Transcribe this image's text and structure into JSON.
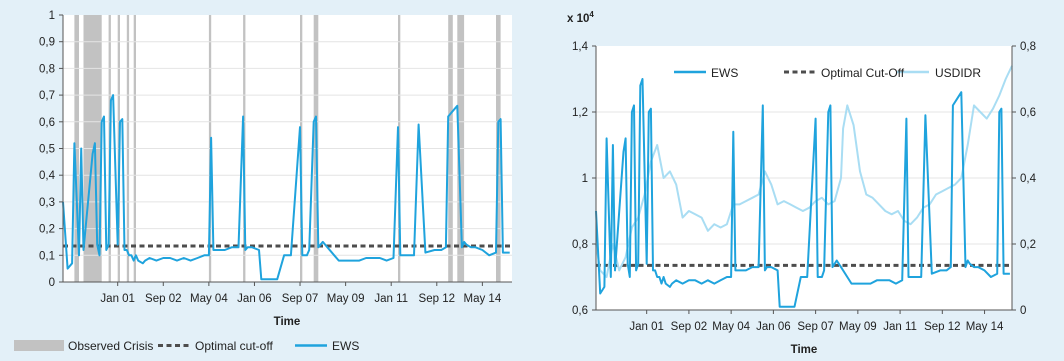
{
  "chart_data": [
    {
      "type": "line",
      "xlabel": "Time",
      "ylabel": "",
      "ylim": [
        0,
        1
      ],
      "yticks": [
        "0",
        "0,1",
        "0,2",
        "0,3",
        "0,4",
        "0,5",
        "0,6",
        "0,7",
        "0,8",
        "0,9",
        "1"
      ],
      "xlim": [
        "1999-01",
        "2015-06"
      ],
      "xtick_labels": [
        "Jan 01",
        "Sep 02",
        "May 04",
        "Jan 06",
        "Sep 07",
        "May 09",
        "Jan 11",
        "Sep 12",
        "May 14"
      ],
      "xtick_dates": [
        "2001-01",
        "2002-09",
        "2004-05",
        "2006-01",
        "2007-09",
        "2009-05",
        "2011-01",
        "2012-09",
        "2014-05"
      ],
      "legend_position": "bottom",
      "legend": [
        "Observed Crisis",
        "Optimal cut-off",
        "EWS"
      ],
      "crisis_periods": [
        [
          "1999-06",
          "1999-08"
        ],
        [
          "1999-10",
          "2000-06"
        ],
        [
          "2000-09",
          "2000-10"
        ],
        [
          "2001-01",
          "2001-02"
        ],
        [
          "2001-05",
          "2001-06"
        ],
        [
          "2001-08",
          "2001-09"
        ],
        [
          "2004-05",
          "2004-06"
        ],
        [
          "2005-08",
          "2005-09"
        ],
        [
          "2007-09",
          "2007-10"
        ],
        [
          "2008-03",
          "2008-05"
        ],
        [
          "2011-04",
          "2011-05"
        ],
        [
          "2013-02",
          "2013-04"
        ],
        [
          "2013-06",
          "2013-09"
        ],
        [
          "2014-11",
          "2015-01"
        ]
      ],
      "series": [
        {
          "name": "Optimal cut-off",
          "style": "dashed",
          "color": "#4d4d4d",
          "x": [
            "1999-01",
            "2015-06"
          ],
          "values": [
            0.135,
            0.135
          ]
        },
        {
          "name": "EWS",
          "style": "solid",
          "color": "#1fa3dd",
          "x": [
            "1999-01",
            "1999-03",
            "1999-05",
            "1999-06",
            "1999-08",
            "1999-09",
            "1999-10",
            "2000-02",
            "2000-03",
            "2000-04",
            "2000-05",
            "2000-06",
            "2000-07",
            "2000-08",
            "2000-09",
            "2000-10",
            "2000-11",
            "2001-01",
            "2001-02",
            "2001-03",
            "2001-04",
            "2001-05",
            "2001-06",
            "2001-07",
            "2001-08",
            "2001-09",
            "2001-10",
            "2001-12",
            "2002-01",
            "2002-03",
            "2002-06",
            "2002-09",
            "2002-12",
            "2003-03",
            "2003-06",
            "2003-09",
            "2003-12",
            "2004-03",
            "2004-05",
            "2004-06",
            "2004-07",
            "2004-09",
            "2004-12",
            "2005-03",
            "2005-06",
            "2005-08",
            "2005-09",
            "2005-10",
            "2005-12",
            "2006-03",
            "2006-04",
            "2006-05",
            "2006-08",
            "2006-11",
            "2007-02",
            "2007-04",
            "2007-05",
            "2007-09",
            "2007-10",
            "2007-12",
            "2008-01",
            "2008-03",
            "2008-04",
            "2008-05",
            "2008-07",
            "2008-09",
            "2008-12",
            "2009-02",
            "2009-05",
            "2009-08",
            "2009-11",
            "2010-02",
            "2010-05",
            "2010-08",
            "2010-11",
            "2011-02",
            "2011-04",
            "2011-05",
            "2011-06",
            "2011-09",
            "2011-11",
            "2012-01",
            "2012-04",
            "2012-08",
            "2012-11",
            "2013-01",
            "2013-02",
            "2013-04",
            "2013-06",
            "2013-08",
            "2013-09",
            "2013-10",
            "2013-12",
            "2014-02",
            "2014-05",
            "2014-08",
            "2014-11",
            "2014-12",
            "2015-01",
            "2015-02",
            "2015-05"
          ],
          "values": [
            0.3,
            0.05,
            0.07,
            0.52,
            0.1,
            0.5,
            0.12,
            0.48,
            0.52,
            0.14,
            0.1,
            0.6,
            0.62,
            0.12,
            0.14,
            0.68,
            0.7,
            0.14,
            0.6,
            0.61,
            0.12,
            0.12,
            0.1,
            0.1,
            0.08,
            0.1,
            0.08,
            0.07,
            0.08,
            0.09,
            0.08,
            0.09,
            0.09,
            0.08,
            0.09,
            0.08,
            0.09,
            0.1,
            0.1,
            0.54,
            0.12,
            0.12,
            0.12,
            0.13,
            0.13,
            0.62,
            0.12,
            0.13,
            0.13,
            0.12,
            0.01,
            0.01,
            0.01,
            0.01,
            0.1,
            0.1,
            0.1,
            0.58,
            0.1,
            0.1,
            0.12,
            0.6,
            0.62,
            0.13,
            0.15,
            0.13,
            0.1,
            0.08,
            0.08,
            0.08,
            0.08,
            0.09,
            0.09,
            0.09,
            0.08,
            0.09,
            0.58,
            0.1,
            0.1,
            0.1,
            0.1,
            0.59,
            0.11,
            0.12,
            0.12,
            0.13,
            0.62,
            0.64,
            0.66,
            0.13,
            0.15,
            0.14,
            0.13,
            0.13,
            0.12,
            0.1,
            0.11,
            0.6,
            0.61,
            0.11,
            0.11
          ]
        }
      ]
    },
    {
      "type": "line",
      "xlabel": "Time",
      "ylabel": "",
      "y_multiplier": "x 10",
      "y_multiplier_exp": "4",
      "ylim": [
        0.6,
        1.4
      ],
      "yticks": [
        "0,6",
        "0,8",
        "1",
        "1,2",
        "1,4"
      ],
      "y2lim": [
        0,
        0.8
      ],
      "y2ticks": [
        "0",
        "0,2",
        "0,4",
        "0,6",
        "0,8"
      ],
      "xlim": [
        "1999-01",
        "2015-06"
      ],
      "xtick_labels": [
        "Jan 01",
        "Sep 02",
        "May 04",
        "Jan 06",
        "Sep 07",
        "May 09",
        "Jan 11",
        "Sep 12",
        "May 14"
      ],
      "xtick_dates": [
        "2001-01",
        "2002-09",
        "2004-05",
        "2006-01",
        "2007-09",
        "2009-05",
        "2011-01",
        "2012-09",
        "2014-05"
      ],
      "legend_position": "top",
      "legend": [
        "EWS",
        "Optimal Cut-Off",
        "USDIDR"
      ],
      "series": [
        {
          "name": "Optimal Cut-Off",
          "axis": "right",
          "style": "dashed",
          "color": "#4d4d4d",
          "x": [
            "1999-01",
            "2015-06"
          ],
          "values": [
            0.135,
            0.135
          ]
        },
        {
          "name": "USDIDR",
          "axis": "left",
          "style": "solid",
          "color": "#a9ddf3",
          "x": [
            "1999-01",
            "1999-03",
            "1999-06",
            "1999-09",
            "1999-12",
            "2000-03",
            "2000-06",
            "2000-09",
            "2000-12",
            "2001-03",
            "2001-06",
            "2001-09",
            "2001-12",
            "2002-03",
            "2002-06",
            "2002-09",
            "2002-12",
            "2003-03",
            "2003-06",
            "2003-09",
            "2003-12",
            "2004-03",
            "2004-06",
            "2004-09",
            "2004-12",
            "2005-03",
            "2005-06",
            "2005-09",
            "2005-12",
            "2006-03",
            "2006-06",
            "2006-09",
            "2006-12",
            "2007-03",
            "2007-06",
            "2007-09",
            "2007-12",
            "2008-03",
            "2008-06",
            "2008-09",
            "2008-10",
            "2008-12",
            "2009-03",
            "2009-06",
            "2009-09",
            "2009-12",
            "2010-03",
            "2010-06",
            "2010-09",
            "2010-12",
            "2011-03",
            "2011-06",
            "2011-09",
            "2011-12",
            "2012-03",
            "2012-06",
            "2012-09",
            "2012-12",
            "2013-03",
            "2013-06",
            "2013-09",
            "2013-12",
            "2014-03",
            "2014-06",
            "2014-09",
            "2014-12",
            "2015-03",
            "2015-06"
          ],
          "values": [
            0.8,
            0.72,
            0.7,
            0.8,
            0.72,
            0.76,
            0.85,
            0.88,
            0.95,
            1.05,
            1.1,
            1.0,
            1.02,
            0.98,
            0.88,
            0.9,
            0.89,
            0.88,
            0.84,
            0.86,
            0.85,
            0.86,
            0.92,
            0.92,
            0.93,
            0.94,
            0.95,
            1.02,
            0.98,
            0.92,
            0.93,
            0.92,
            0.91,
            0.9,
            0.91,
            0.93,
            0.94,
            0.92,
            0.93,
            1.0,
            1.15,
            1.22,
            1.16,
            1.02,
            0.95,
            0.94,
            0.92,
            0.9,
            0.89,
            0.9,
            0.87,
            0.86,
            0.88,
            0.91,
            0.92,
            0.95,
            0.96,
            0.97,
            0.98,
            1.0,
            1.1,
            1.22,
            1.2,
            1.18,
            1.21,
            1.25,
            1.3,
            1.34
          ]
        },
        {
          "name": "EWS",
          "axis": "right",
          "style": "solid",
          "color": "#1fa3dd",
          "x": [
            "1999-01",
            "1999-03",
            "1999-05",
            "1999-06",
            "1999-08",
            "1999-09",
            "1999-10",
            "2000-02",
            "2000-03",
            "2000-04",
            "2000-05",
            "2000-06",
            "2000-07",
            "2000-08",
            "2000-09",
            "2000-10",
            "2000-11",
            "2001-01",
            "2001-02",
            "2001-03",
            "2001-04",
            "2001-05",
            "2001-06",
            "2001-07",
            "2001-08",
            "2001-09",
            "2001-10",
            "2001-12",
            "2002-01",
            "2002-03",
            "2002-06",
            "2002-09",
            "2002-12",
            "2003-03",
            "2003-06",
            "2003-09",
            "2003-12",
            "2004-03",
            "2004-05",
            "2004-06",
            "2004-07",
            "2004-09",
            "2004-12",
            "2005-03",
            "2005-06",
            "2005-08",
            "2005-09",
            "2005-10",
            "2005-12",
            "2006-03",
            "2006-04",
            "2006-05",
            "2006-08",
            "2006-11",
            "2007-02",
            "2007-04",
            "2007-05",
            "2007-09",
            "2007-10",
            "2007-12",
            "2008-01",
            "2008-03",
            "2008-04",
            "2008-05",
            "2008-07",
            "2008-09",
            "2008-12",
            "2009-02",
            "2009-05",
            "2009-08",
            "2009-11",
            "2010-02",
            "2010-05",
            "2010-08",
            "2010-11",
            "2011-02",
            "2011-04",
            "2011-05",
            "2011-06",
            "2011-09",
            "2011-11",
            "2012-01",
            "2012-04",
            "2012-08",
            "2012-11",
            "2013-01",
            "2013-02",
            "2013-04",
            "2013-06",
            "2013-08",
            "2013-09",
            "2013-10",
            "2013-12",
            "2014-02",
            "2014-05",
            "2014-08",
            "2014-11",
            "2014-12",
            "2015-01",
            "2015-02",
            "2015-05"
          ],
          "values": [
            0.3,
            0.05,
            0.07,
            0.52,
            0.1,
            0.5,
            0.12,
            0.48,
            0.52,
            0.14,
            0.1,
            0.6,
            0.62,
            0.12,
            0.14,
            0.68,
            0.7,
            0.14,
            0.6,
            0.61,
            0.12,
            0.12,
            0.1,
            0.1,
            0.08,
            0.1,
            0.08,
            0.07,
            0.08,
            0.09,
            0.08,
            0.09,
            0.09,
            0.08,
            0.09,
            0.08,
            0.09,
            0.1,
            0.1,
            0.54,
            0.12,
            0.12,
            0.12,
            0.13,
            0.13,
            0.62,
            0.12,
            0.13,
            0.13,
            0.12,
            0.01,
            0.01,
            0.01,
            0.01,
            0.1,
            0.1,
            0.1,
            0.58,
            0.1,
            0.1,
            0.12,
            0.6,
            0.62,
            0.13,
            0.15,
            0.13,
            0.1,
            0.08,
            0.08,
            0.08,
            0.08,
            0.09,
            0.09,
            0.09,
            0.08,
            0.09,
            0.58,
            0.1,
            0.1,
            0.1,
            0.1,
            0.59,
            0.11,
            0.12,
            0.12,
            0.13,
            0.62,
            0.64,
            0.66,
            0.13,
            0.15,
            0.14,
            0.13,
            0.13,
            0.12,
            0.1,
            0.11,
            0.6,
            0.61,
            0.11,
            0.11
          ]
        }
      ]
    }
  ]
}
